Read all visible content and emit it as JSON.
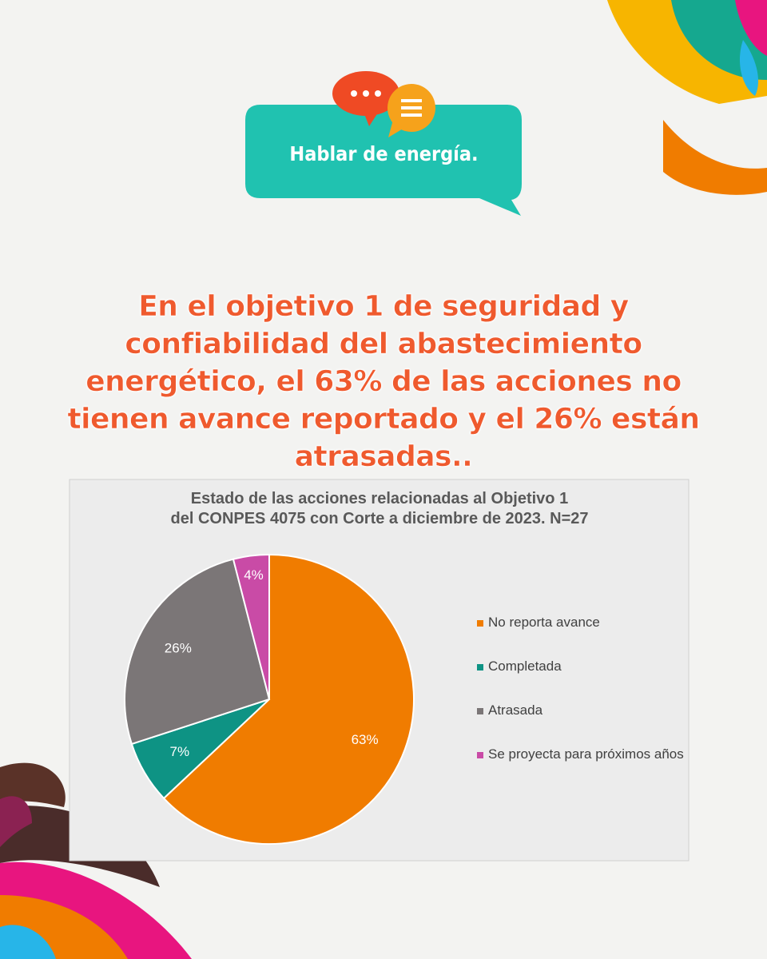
{
  "badge": "Hablar de energía.",
  "headline": "En el objetivo 1 de seguridad y confiabilidad del abastecimiento energético, el 63% de las acciones no tienen avance reportado y el 26% están atrasadas..",
  "chart_data": {
    "type": "pie",
    "title": "Estado de las acciones relacionadas al Objetivo 1 del CONPES 4075 con Corte a diciembre de 2023. N=27",
    "categories": [
      "No reporta avance",
      "Completada",
      "Atrasada",
      "Se proyecta para próximos años"
    ],
    "values": [
      63,
      7,
      26,
      4
    ],
    "value_labels": [
      "63%",
      "7%",
      "26%",
      "4%"
    ],
    "colors": [
      "#f07c00",
      "#0e9384",
      "#7b7677",
      "#c94ba6"
    ]
  }
}
